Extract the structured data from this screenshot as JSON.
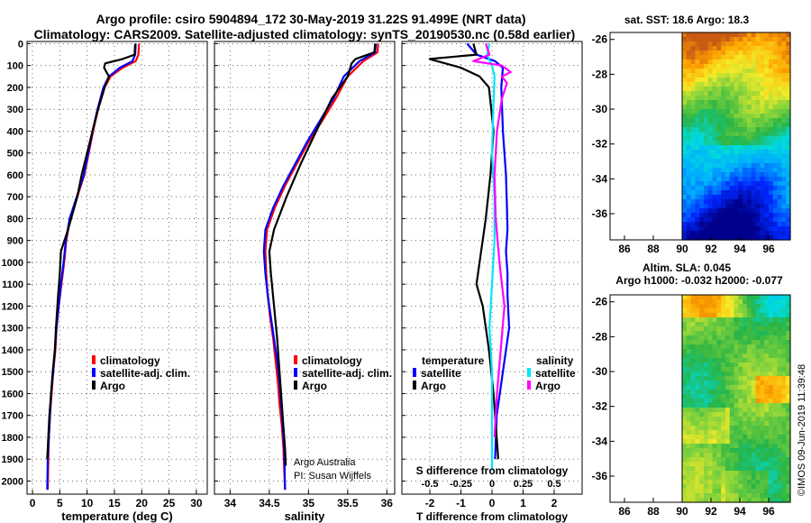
{
  "header": {
    "line1": "Argo profile: csiro 5904894_172 30-May-2019 31.22S 91.499E (NRT data)",
    "line2": "Climatology: CARS2009. Satellite-adjusted climatology: synTS_20190530.nc (0.58d earlier)"
  },
  "depth_axis": {
    "ticks": [
      "0",
      "100",
      "200",
      "300",
      "400",
      "500",
      "600",
      "700",
      "800",
      "900",
      "1000",
      "1100",
      "1200",
      "1300",
      "1400",
      "1500",
      "1600",
      "1700",
      "1800",
      "1900",
      "2000"
    ]
  },
  "colors": {
    "climatology": "#ff0000",
    "satellite": "#0000ff",
    "argo": "#000000",
    "sat_sal": "#00e5ff",
    "argo_sal": "#ff00ff"
  },
  "chart_data": [
    {
      "type": "line",
      "id": "temperature",
      "xlabel": "temperature (deg C)",
      "xlim": [
        -1,
        32
      ],
      "ylim": [
        2060,
        -10
      ],
      "xticks": [
        0,
        5,
        10,
        15,
        20,
        25,
        30
      ],
      "xtick_labels": [
        "0",
        "5",
        "10",
        "15",
        "20",
        "25",
        "30"
      ],
      "legend": [
        "climatology",
        "satellite-adj. clim.",
        "Argo"
      ],
      "series": [
        {
          "name": "climatology",
          "color": "#ff0000",
          "x": [
            19.5,
            19.4,
            18.9,
            16.5,
            14.3,
            13.2,
            12.0,
            11.1,
            10.3,
            9.5,
            8.2,
            6.9,
            6.2,
            5.8,
            5.3,
            4.8,
            4.4,
            4.2,
            3.8,
            3.5,
            3.2,
            3.0,
            2.9,
            2.8
          ],
          "y": [
            0,
            50,
            80,
            110,
            150,
            200,
            300,
            400,
            500,
            600,
            700,
            800,
            900,
            1000,
            1100,
            1200,
            1300,
            1400,
            1500,
            1600,
            1700,
            1800,
            1900,
            2040
          ]
        },
        {
          "name": "satellite-adj. clim.",
          "color": "#0000ff",
          "x": [
            18.9,
            18.8,
            18.3,
            16.0,
            14.0,
            13.0,
            11.9,
            11.0,
            10.2,
            9.4,
            8.1,
            6.8,
            6.1,
            5.7,
            5.2,
            4.8,
            4.4,
            4.1,
            3.8,
            3.4,
            3.2,
            3.0,
            2.8,
            2.7
          ],
          "y": [
            0,
            50,
            80,
            110,
            150,
            200,
            300,
            400,
            500,
            600,
            700,
            800,
            900,
            1000,
            1100,
            1200,
            1300,
            1400,
            1500,
            1600,
            1700,
            1800,
            1900,
            2040
          ]
        },
        {
          "name": "Argo",
          "color": "#000000",
          "x": [
            18.8,
            18.7,
            16.5,
            13.3,
            13.1,
            14.0,
            13.2,
            12.0,
            11.0,
            10.0,
            9.0,
            8.2,
            6.5,
            5.2,
            5.0,
            4.7,
            4.3,
            4.1,
            3.7,
            3.4,
            3.1,
            2.9,
            2.7
          ],
          "y": [
            0,
            50,
            70,
            90,
            110,
            150,
            200,
            300,
            400,
            500,
            600,
            700,
            850,
            950,
            1050,
            1150,
            1300,
            1400,
            1500,
            1600,
            1700,
            1800,
            1900
          ]
        }
      ]
    },
    {
      "type": "line",
      "id": "salinity",
      "xlabel": "salinity",
      "xlim": [
        33.8,
        36.1
      ],
      "ylim": [
        2060,
        -10
      ],
      "xticks": [
        34,
        34.5,
        35,
        35.5,
        36
      ],
      "xtick_labels": [
        "34",
        "34.5",
        "35",
        "35.5",
        "36"
      ],
      "legend": [
        "climatology",
        "satellite-adj. clim.",
        "Argo"
      ],
      "annotation": [
        "Argo Australia",
        "PI: Susan Wijffels"
      ],
      "series": [
        {
          "name": "climatology",
          "color": "#ff0000",
          "x": [
            35.89,
            35.88,
            35.7,
            35.5,
            35.35,
            35.18,
            35.0,
            34.85,
            34.7,
            34.57,
            34.47,
            34.45,
            34.46,
            34.48,
            34.51,
            34.55,
            34.58,
            34.61,
            34.63,
            34.66,
            34.68,
            34.7
          ],
          "y": [
            0,
            40,
            80,
            150,
            250,
            350,
            450,
            550,
            650,
            750,
            850,
            950,
            1050,
            1150,
            1250,
            1350,
            1450,
            1550,
            1650,
            1750,
            1850,
            2040
          ]
        },
        {
          "name": "satellite-adj. clim.",
          "color": "#0000ff",
          "x": [
            35.86,
            35.85,
            35.65,
            35.45,
            35.32,
            35.15,
            34.98,
            34.83,
            34.68,
            34.55,
            34.45,
            34.43,
            34.45,
            34.48,
            34.52,
            34.56,
            34.6,
            34.63,
            34.65,
            34.67,
            34.69,
            34.7
          ],
          "y": [
            0,
            40,
            80,
            150,
            250,
            350,
            450,
            550,
            650,
            750,
            850,
            950,
            1050,
            1150,
            1250,
            1350,
            1450,
            1550,
            1650,
            1750,
            1850,
            2040
          ]
        },
        {
          "name": "Argo",
          "color": "#000000",
          "x": [
            35.85,
            35.84,
            35.6,
            35.55,
            35.5,
            35.3,
            35.1,
            34.9,
            34.72,
            34.56,
            34.5,
            34.52,
            34.56,
            34.6,
            34.63,
            34.66,
            34.68,
            34.7,
            34.71
          ],
          "y": [
            0,
            40,
            70,
            90,
            150,
            250,
            400,
            550,
            700,
            850,
            950,
            1050,
            1200,
            1350,
            1500,
            1650,
            1750,
            1850,
            1930
          ]
        }
      ]
    },
    {
      "type": "line",
      "id": "differences",
      "xlabel": "T difference from climatology",
      "xlabel_top": "S difference from climatology",
      "xlim": [
        -2.9,
        2.9
      ],
      "ylim": [
        2060,
        -10
      ],
      "xticks": [
        -2,
        -1,
        0,
        1,
        2
      ],
      "xtick_labels": [
        "-2",
        "-1",
        "0",
        "1",
        "2"
      ],
      "s_xticks": [
        -0.5,
        -0.25,
        0,
        0.25,
        0.5
      ],
      "s_xtick_labels": [
        "-0.5",
        "-0.25",
        "0",
        "0.25",
        "0.5"
      ],
      "legend_temperature": {
        "title": "temperature",
        "items": [
          "satellite",
          "Argo"
        ]
      },
      "legend_salinity": {
        "title": "salinity",
        "items": [
          "satellite",
          "Argo"
        ]
      },
      "series": [
        {
          "name": "T satellite",
          "color": "#0000ff",
          "x": [
            -0.8,
            -0.5,
            0.1,
            0.35,
            0.3,
            0.35,
            0.45,
            0.48,
            0.5,
            0.45,
            0.5,
            0.5,
            0.55,
            0.35,
            0.15,
            0.1
          ],
          "y": [
            0,
            50,
            80,
            110,
            200,
            400,
            600,
            750,
            850,
            950,
            1050,
            1150,
            1300,
            1500,
            1700,
            1900
          ]
        },
        {
          "name": "T Argo",
          "color": "#000000",
          "x": [
            -0.6,
            -0.5,
            -2.0,
            -1.9,
            -1.0,
            -0.4,
            -0.1,
            0.05,
            -0.05,
            -0.2,
            -0.4,
            -0.5,
            -0.3,
            -0.1,
            0.05,
            0.15,
            0.2
          ],
          "y": [
            0,
            50,
            70,
            75,
            110,
            150,
            200,
            400,
            600,
            800,
            1000,
            1100,
            1200,
            1400,
            1600,
            1800,
            1900
          ]
        },
        {
          "name": "S satellite",
          "color": "#00e5ff",
          "x": [
            -0.02,
            -0.04,
            0.0,
            0.02,
            0.01,
            0.0,
            0.02,
            0.02,
            0.0,
            -0.02,
            0.0,
            0.0,
            0.0,
            0.0
          ],
          "y": [
            0,
            50,
            100,
            150,
            300,
            500,
            700,
            900,
            1100,
            1300,
            1500,
            1700,
            1850,
            1950
          ]
        },
        {
          "name": "S Argo",
          "color": "#ff00ff",
          "x": [
            -0.05,
            -0.02,
            -0.15,
            0.08,
            0.15,
            0.08,
            0.12,
            0.08,
            0.04,
            0.02,
            0.03,
            0.06,
            0.08,
            0.1,
            0.07,
            0.04,
            0.02
          ],
          "y": [
            0,
            50,
            80,
            100,
            130,
            150,
            180,
            250,
            400,
            600,
            800,
            1000,
            1100,
            1200,
            1400,
            1600,
            1800
          ]
        }
      ]
    },
    {
      "type": "heatmap",
      "id": "sst_map",
      "title": "sat. SST: 18.6 Argo: 18.3",
      "xticks": [
        86,
        88,
        90,
        92,
        94,
        96
      ],
      "xtick_labels": [
        "86",
        "88",
        "90",
        "92",
        "94",
        "96"
      ],
      "yticks": [
        -26,
        -28,
        -30,
        -32,
        -34,
        -36
      ],
      "ytick_labels": [
        "-26",
        "-28",
        "-30",
        "-32",
        "-34",
        "-36"
      ],
      "xlim": [
        85,
        97.5
      ],
      "ylim": [
        -37.5,
        -25.6
      ]
    },
    {
      "type": "heatmap",
      "id": "sla_map",
      "title1": "Altim. SLA: 0.045",
      "title2": "Argo h1000: -0.032 h2000: -0.077",
      "xticks": [
        86,
        88,
        90,
        92,
        94,
        96
      ],
      "xtick_labels": [
        "86",
        "88",
        "90",
        "92",
        "94",
        "96"
      ],
      "yticks": [
        -26,
        -28,
        -30,
        -32,
        -34,
        -36
      ],
      "ytick_labels": [
        "-26",
        "-28",
        "-30",
        "-32",
        "-34",
        "-36"
      ],
      "xlim": [
        85,
        97.5
      ],
      "ylim": [
        -37.5,
        -25.6
      ]
    }
  ],
  "footer": {
    "stamp": "©IMOS 09-Jun-2019 11:39:48"
  }
}
